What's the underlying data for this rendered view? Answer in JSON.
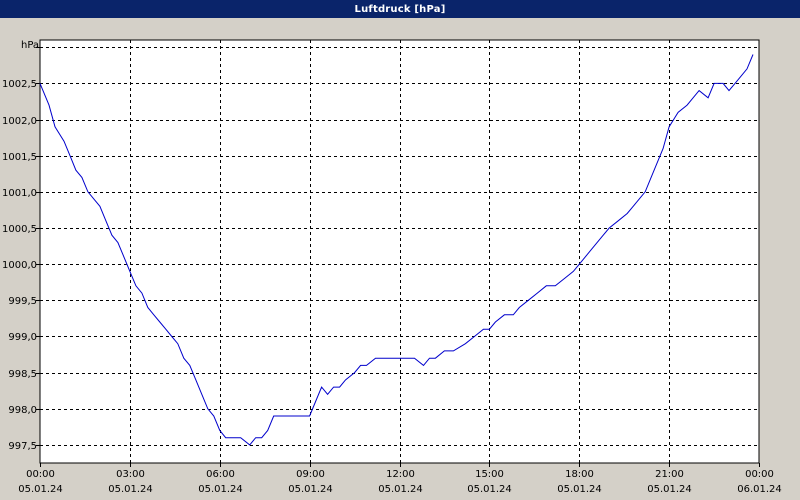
{
  "window": {
    "title": "Luftdruck [hPa]"
  },
  "chart_data": {
    "type": "line",
    "title": "Luftdruck [hPa]",
    "ylabel": "hPa",
    "xlabel": "",
    "ylim": [
      997.25,
      1003.1
    ],
    "xlim": [
      0,
      24
    ],
    "grid": true,
    "line_color": "#0000cc",
    "y_ticks": [
      {
        "value": 997.5,
        "label": "997,5"
      },
      {
        "value": 998.0,
        "label": "998,0"
      },
      {
        "value": 998.5,
        "label": "998,5"
      },
      {
        "value": 999.0,
        "label": "999,0"
      },
      {
        "value": 999.5,
        "label": "999,5"
      },
      {
        "value": 1000.0,
        "label": "1000,0"
      },
      {
        "value": 1000.5,
        "label": "1000,5"
      },
      {
        "value": 1001.0,
        "label": "1001,0"
      },
      {
        "value": 1001.5,
        "label": "1001,5"
      },
      {
        "value": 1002.0,
        "label": "1002,0"
      },
      {
        "value": 1002.5,
        "label": "1002,5"
      },
      {
        "value": 1003.0,
        "label": ""
      }
    ],
    "x_ticks": [
      {
        "value": 0,
        "time": "00:00",
        "date": "05.01.24"
      },
      {
        "value": 3,
        "time": "03:00",
        "date": "05.01.24"
      },
      {
        "value": 6,
        "time": "06:00",
        "date": "05.01.24"
      },
      {
        "value": 9,
        "time": "09:00",
        "date": "05.01.24"
      },
      {
        "value": 12,
        "time": "12:00",
        "date": "05.01.24"
      },
      {
        "value": 15,
        "time": "15:00",
        "date": "05.01.24"
      },
      {
        "value": 18,
        "time": "18:00",
        "date": "05.01.24"
      },
      {
        "value": 21,
        "time": "21:00",
        "date": "05.01.24"
      },
      {
        "value": 24,
        "time": "00:00",
        "date": "06.01.24"
      }
    ],
    "series": [
      {
        "x": [
          0,
          0.3,
          0.5,
          0.8,
          1.0,
          1.2,
          1.4,
          1.6,
          1.8,
          2.0,
          2.2,
          2.4,
          2.6,
          2.8,
          3.0,
          3.2,
          3.4,
          3.6,
          3.8,
          4.0,
          4.2,
          4.4,
          4.6,
          4.8,
          5.0,
          5.2,
          5.4,
          5.6,
          5.8,
          6.0,
          6.2,
          6.3,
          6.5,
          6.7,
          7.0,
          7.2,
          7.4,
          7.6,
          7.8,
          8.0,
          8.2,
          8.5,
          9.0,
          9.2,
          9.4,
          9.6,
          9.8,
          10.0,
          10.2,
          10.5,
          10.7,
          10.9,
          11.2,
          11.5,
          12.0,
          12.5,
          12.8,
          13.0,
          13.2,
          13.5,
          13.8,
          14.2,
          14.5,
          14.8,
          15.0,
          15.2,
          15.5,
          15.8,
          16.0,
          16.3,
          16.6,
          16.9,
          17.2,
          17.5,
          17.8,
          18.0,
          18.4,
          18.8,
          19.0,
          19.3,
          19.6,
          19.8,
          20.0,
          20.2,
          20.4,
          20.6,
          20.8,
          21.0,
          21.3,
          21.6,
          21.8,
          22.0,
          22.3,
          22.5,
          22.8,
          23.0,
          23.2,
          23.4,
          23.6,
          23.8
        ],
        "y": [
          1002.5,
          1002.2,
          1001.9,
          1001.7,
          1001.5,
          1001.3,
          1001.2,
          1001.0,
          1000.9,
          1000.8,
          1000.6,
          1000.4,
          1000.3,
          1000.1,
          999.9,
          999.7,
          999.6,
          999.4,
          999.3,
          999.2,
          999.1,
          999.0,
          998.9,
          998.7,
          998.6,
          998.4,
          998.2,
          998.0,
          997.9,
          997.7,
          997.6,
          997.6,
          997.6,
          997.6,
          997.5,
          997.6,
          997.6,
          997.7,
          997.9,
          997.9,
          997.9,
          997.9,
          997.9,
          998.1,
          998.3,
          998.2,
          998.3,
          998.3,
          998.4,
          998.5,
          998.6,
          998.6,
          998.7,
          998.7,
          998.7,
          998.7,
          998.6,
          998.7,
          998.7,
          998.8,
          998.8,
          998.9,
          999.0,
          999.1,
          999.1,
          999.2,
          999.3,
          999.3,
          999.4,
          999.5,
          999.6,
          999.7,
          999.7,
          999.8,
          999.9,
          1000.0,
          1000.2,
          1000.4,
          1000.5,
          1000.6,
          1000.7,
          1000.8,
          1000.9,
          1001.0,
          1001.2,
          1001.4,
          1001.6,
          1001.9,
          1002.1,
          1002.2,
          1002.3,
          1002.4,
          1002.3,
          1002.5,
          1002.5,
          1002.4,
          1002.5,
          1002.6,
          1002.7,
          1002.9
        ]
      }
    ]
  }
}
